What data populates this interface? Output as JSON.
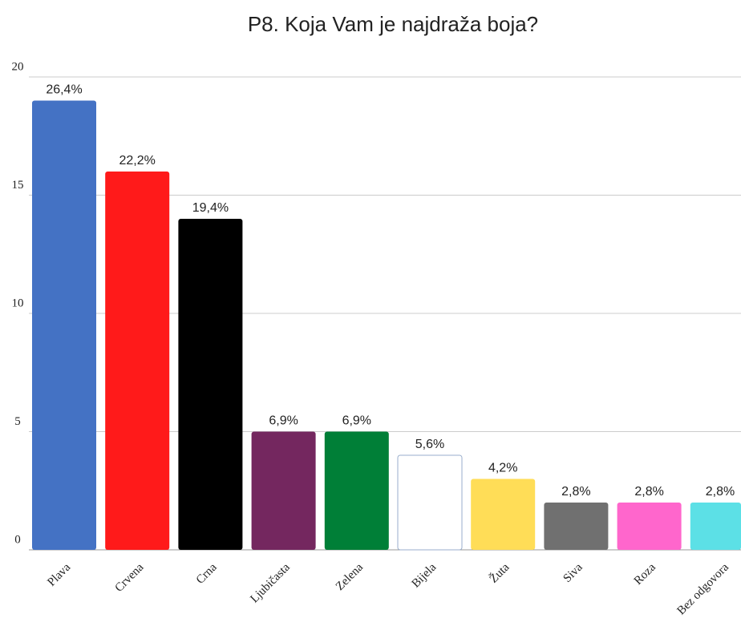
{
  "chart_data": {
    "type": "bar",
    "title": "P8. Koja Vam je najdraža boja?",
    "categories": [
      "Plava",
      "Crvena",
      "Crna",
      "Ljubičasta",
      "Zelena",
      "Bijela",
      "Žuta",
      "Siva",
      "Roza",
      "Bez odgovora"
    ],
    "values": [
      19,
      16,
      14,
      5,
      5,
      4,
      3,
      2,
      2,
      2
    ],
    "value_labels": [
      "26,4%",
      "22,2%",
      "19,4%",
      "6,9%",
      "6,9%",
      "5,6%",
      "4,2%",
      "2,8%",
      "2,8%",
      "2,8%"
    ],
    "colors": [
      "#4472c4",
      "#ff1a1a",
      "#000000",
      "#74275f",
      "#007f37",
      "#ffffff",
      "#ffdd57",
      "#707070",
      "#ff66cc",
      "#5ce0e6"
    ],
    "ylim": [
      0,
      20
    ],
    "yticks": [
      0,
      5,
      10,
      15,
      20
    ],
    "grid": true
  }
}
